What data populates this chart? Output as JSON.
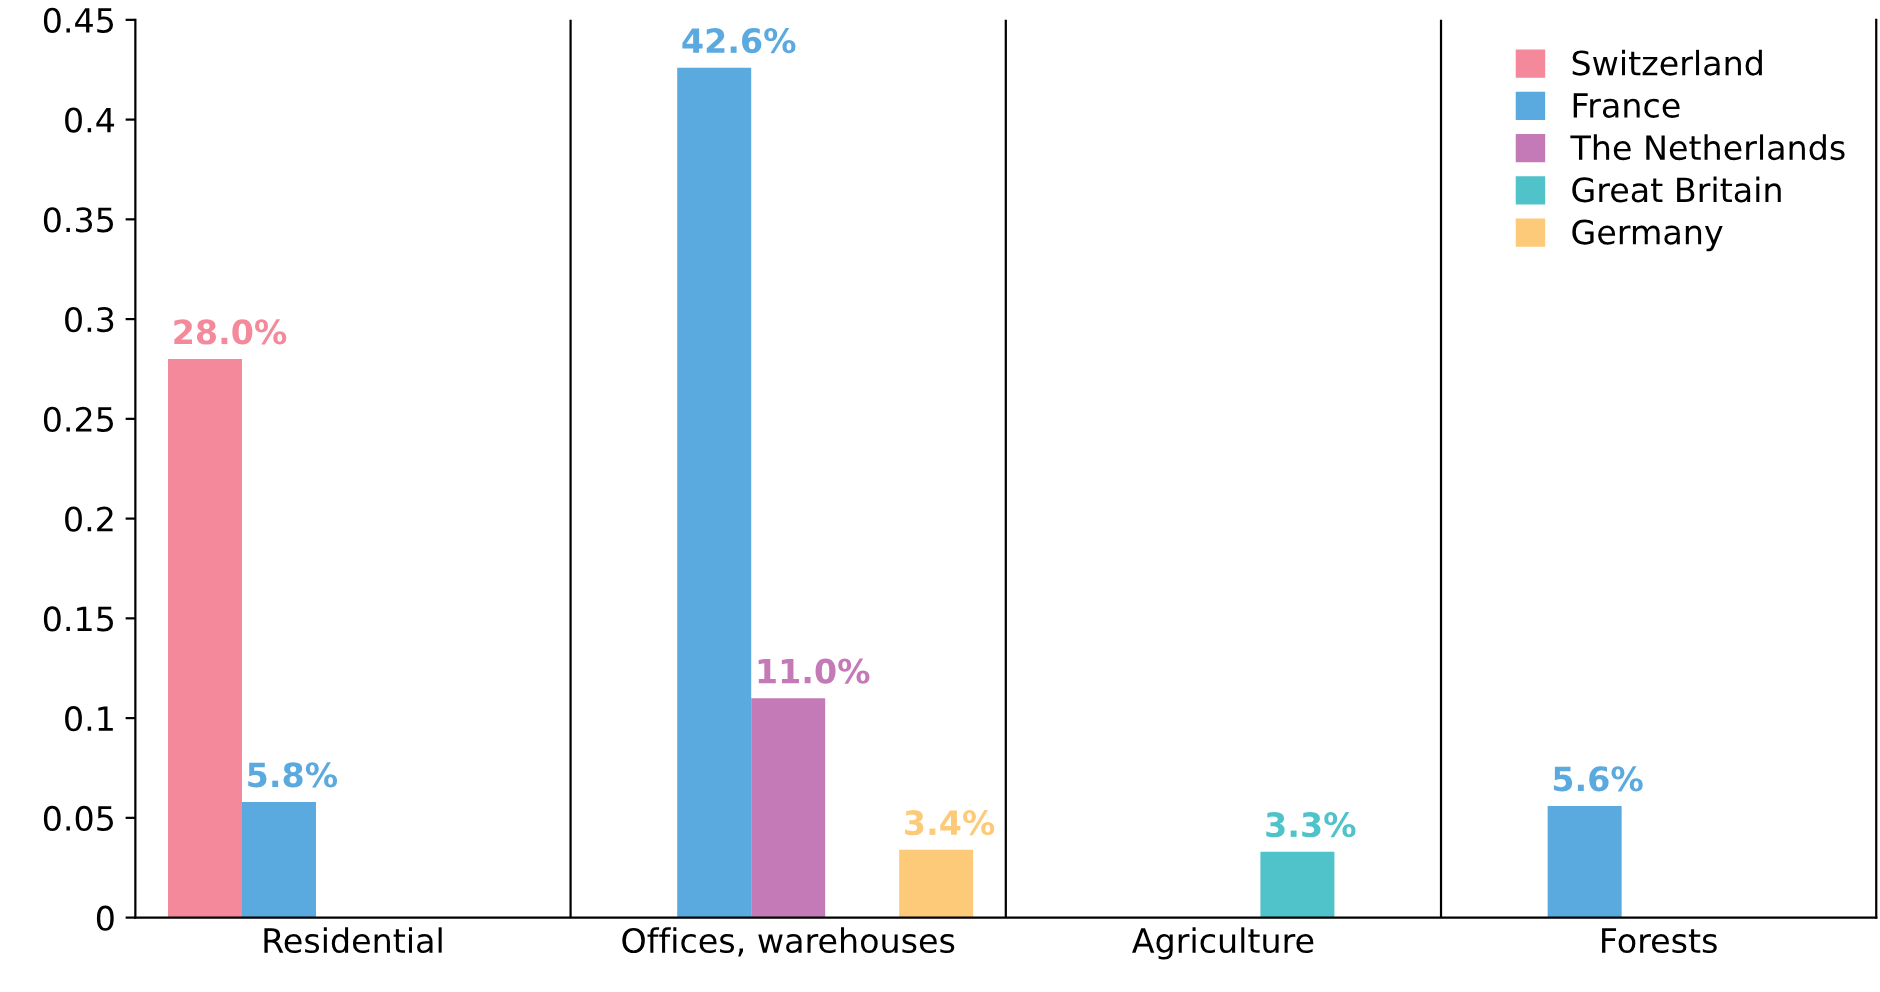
{
  "chart_data": {
    "type": "bar",
    "categories": [
      "Residential",
      "Offices, warehouses",
      "Agriculture",
      "Forests"
    ],
    "series": [
      {
        "name": "Switzerland",
        "color": "#f4899b",
        "values": [
          0.28,
          null,
          null,
          null
        ],
        "value_labels": [
          "28.0%",
          null,
          null,
          null
        ]
      },
      {
        "name": "France",
        "color": "#5aa9df",
        "values": [
          0.058,
          0.426,
          null,
          0.056
        ],
        "value_labels": [
          "5.8%",
          "42.6%",
          null,
          "5.6%"
        ]
      },
      {
        "name": "The Netherlands",
        "color": "#c47ab6",
        "values": [
          null,
          0.11,
          null,
          null
        ],
        "value_labels": [
          null,
          "11.0%",
          null,
          null
        ]
      },
      {
        "name": "Great Britain",
        "color": "#4fc3c9",
        "values": [
          null,
          null,
          0.033,
          null
        ],
        "value_labels": [
          null,
          null,
          "3.3%",
          null
        ]
      },
      {
        "name": "Germany",
        "color": "#fdca7a",
        "values": [
          null,
          0.034,
          null,
          null
        ],
        "value_labels": [
          null,
          "3.4%",
          null,
          null
        ]
      }
    ],
    "ylim": [
      0,
      0.45
    ],
    "yticks": [
      0,
      0.05,
      0.1,
      0.15,
      0.2,
      0.25,
      0.3,
      0.35,
      0.4,
      0.45
    ],
    "grid": "x",
    "legend": "top right"
  }
}
